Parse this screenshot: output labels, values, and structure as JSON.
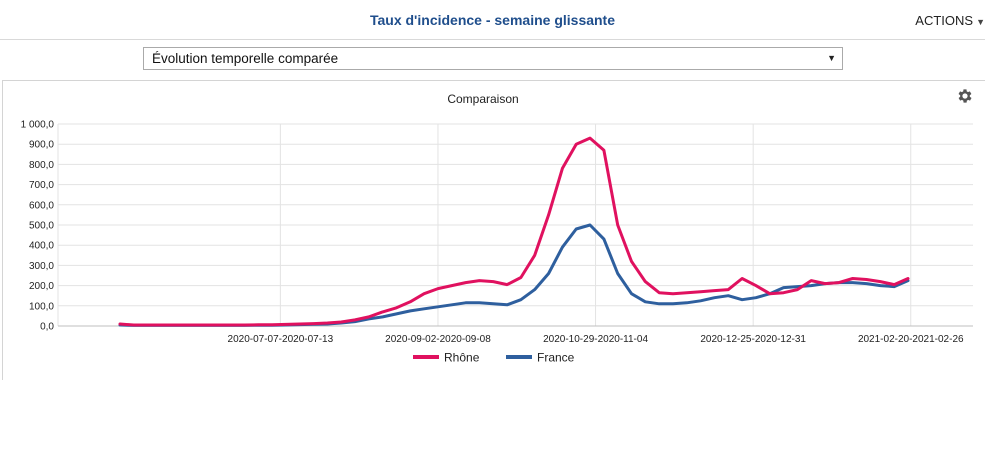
{
  "header": {
    "title": "Taux d'incidence - semaine glissante",
    "actions_label": "ACTIONS"
  },
  "selector": {
    "value": "Évolution temporelle comparée"
  },
  "icons": {
    "settings": "gear-icon",
    "select_arrow": "caret-down-icon"
  },
  "chart_data": {
    "type": "line",
    "title": "Comparaison",
    "xlabel": "",
    "ylabel": "",
    "ylim": [
      0,
      1000
    ],
    "yticks": [
      "0,0",
      "100,0",
      "200,0",
      "300,0",
      "400,0",
      "500,0",
      "600,0",
      "700,0",
      "800,0",
      "900,0",
      "1 000,0"
    ],
    "xticks": [
      "2020-07-07-2020-07-13",
      "2020-09-02-2020-09-08",
      "2020-10-29-2020-11-04",
      "2020-12-25-2020-12-31",
      "2021-02-20-2021-02-26"
    ],
    "grid": true,
    "legend_position": "bottom",
    "x_dates": [
      "2020-05-13",
      "2020-05-18",
      "2020-05-23",
      "2020-05-28",
      "2020-06-02",
      "2020-06-07",
      "2020-06-12",
      "2020-06-17",
      "2020-06-22",
      "2020-06-27",
      "2020-07-02",
      "2020-07-07",
      "2020-07-12",
      "2020-07-17",
      "2020-07-22",
      "2020-07-27",
      "2020-08-01",
      "2020-08-06",
      "2020-08-11",
      "2020-08-16",
      "2020-08-21",
      "2020-08-26",
      "2020-08-31",
      "2020-09-05",
      "2020-09-10",
      "2020-09-15",
      "2020-09-20",
      "2020-09-25",
      "2020-09-30",
      "2020-10-05",
      "2020-10-10",
      "2020-10-15",
      "2020-10-20",
      "2020-10-25",
      "2020-10-30",
      "2020-11-04",
      "2020-11-09",
      "2020-11-14",
      "2020-11-19",
      "2020-11-24",
      "2020-11-29",
      "2020-12-04",
      "2020-12-09",
      "2020-12-14",
      "2020-12-19",
      "2020-12-24",
      "2020-12-29",
      "2021-01-03",
      "2021-01-08",
      "2021-01-13",
      "2021-01-18",
      "2021-01-23",
      "2021-01-28",
      "2021-02-02",
      "2021-02-07",
      "2021-02-12",
      "2021-02-17",
      "2021-02-22"
    ],
    "series": [
      {
        "name": "Rhône",
        "color": "#e0115f",
        "values": [
          10,
          5,
          5,
          5,
          5,
          5,
          5,
          5,
          5,
          5,
          6,
          6,
          8,
          10,
          12,
          15,
          20,
          30,
          45,
          70,
          90,
          120,
          160,
          185,
          200,
          215,
          225,
          220,
          205,
          240,
          350,
          550,
          780,
          900,
          930,
          870,
          500,
          320,
          220,
          165,
          160,
          165,
          170,
          175,
          180,
          235,
          200,
          160,
          165,
          180,
          225,
          210,
          215,
          235,
          230,
          220,
          205,
          235
        ]
      },
      {
        "name": "France",
        "color": "#2e5f9e",
        "values": [
          5,
          3,
          3,
          3,
          3,
          3,
          3,
          3,
          3,
          3,
          4,
          4,
          5,
          7,
          9,
          10,
          15,
          22,
          35,
          45,
          60,
          75,
          85,
          95,
          105,
          115,
          115,
          110,
          105,
          130,
          180,
          260,
          390,
          480,
          500,
          430,
          260,
          160,
          120,
          110,
          110,
          115,
          125,
          140,
          150,
          130,
          140,
          160,
          190,
          195,
          200,
          210,
          215,
          215,
          210,
          200,
          195,
          225
        ]
      }
    ]
  }
}
